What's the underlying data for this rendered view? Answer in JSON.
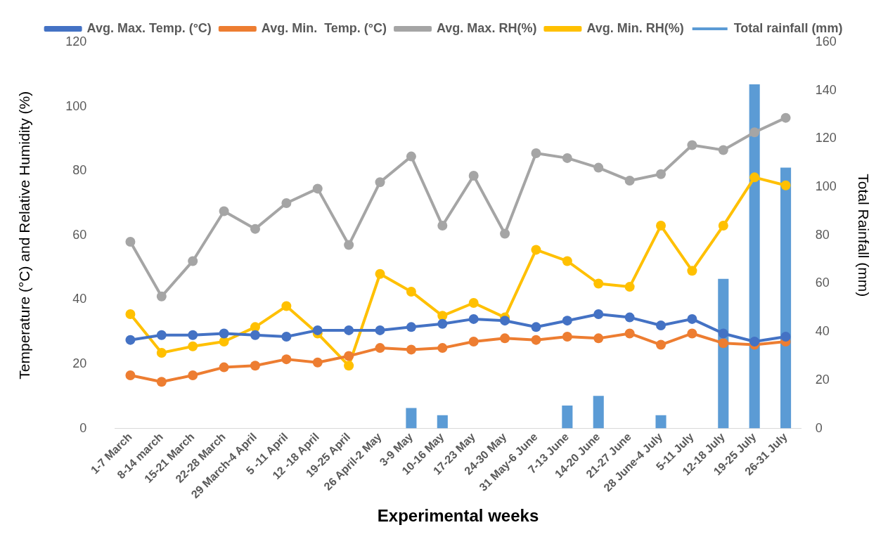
{
  "chart_data": {
    "type": "line",
    "xlabel": "Experimental weeks",
    "ylabel": "Temperature (°C) and Relative Humidity (%)",
    "y2label": "Total Rainfall (mm)",
    "categories": [
      "1-7 March",
      "8-14 march",
      "15-21 March",
      "22-28 March",
      "29 March-4 April",
      "5 -11 April",
      "12 -18 April",
      "19-25 April",
      "26 April-2 May",
      "3-9 May",
      "10-16 May",
      "17-23 May",
      "24-30 May",
      "31 May-6 June",
      "7-13 June",
      "14-20 June",
      "21-27 June",
      "28 June-4 July",
      "5-11 July",
      "12-18 July",
      "19-25 July",
      "26-31 July"
    ],
    "series": [
      {
        "name": "Total rainfall (mm)",
        "type": "bar",
        "axis": "y2",
        "color": "#5b9bd5",
        "values": [
          0,
          0,
          0,
          0,
          0,
          0,
          0,
          0,
          0,
          8.5,
          5.5,
          0,
          0,
          0,
          9.5,
          13.5,
          0,
          5.5,
          0,
          62,
          142.5,
          108
        ]
      },
      {
        "name": "Avg. Max. Temp. (°C)",
        "color": "#4472c4",
        "values": [
          27.5,
          29,
          29,
          29.5,
          29,
          28.5,
          30.5,
          30.5,
          30.5,
          31.5,
          32.5,
          34,
          33.5,
          31.5,
          33.5,
          35.5,
          34.5,
          32,
          34,
          29.5,
          27,
          28.5
        ]
      },
      {
        "name": "Avg. Min.  Temp. (°C)",
        "color": "#ed7d31",
        "values": [
          16.5,
          14.5,
          16.5,
          19,
          19.5,
          21.5,
          20.5,
          22.5,
          25,
          24.5,
          25,
          27,
          28,
          27.5,
          28.5,
          28,
          29.5,
          26,
          29.5,
          26.5,
          26,
          27
        ]
      },
      {
        "name": "Avg. Max. RH(%)",
        "color": "#a5a5a5",
        "values": [
          58,
          41,
          52,
          67.5,
          62,
          70,
          74.5,
          57,
          76.5,
          84.5,
          63,
          78.5,
          60.5,
          85.5,
          84,
          81,
          77,
          79,
          88,
          86.5,
          92,
          96.5
        ]
      },
      {
        "name": "Avg. Min. RH(%)",
        "color": "#ffc000",
        "values": [
          35.5,
          23.5,
          25.5,
          27,
          31.5,
          38,
          29.5,
          19.5,
          48,
          42.5,
          35,
          39,
          34.5,
          55.5,
          52,
          45,
          44,
          63,
          49,
          63,
          78,
          75.5
        ]
      }
    ],
    "ylim": [
      0,
      120
    ],
    "yticks": [
      0,
      20,
      40,
      60,
      80,
      100,
      120
    ],
    "y2lim": [
      0,
      160
    ],
    "y2ticks": [
      0,
      20,
      40,
      60,
      80,
      100,
      120,
      140,
      160
    ],
    "grid": false,
    "legend": "top",
    "marker": "circle",
    "line_style": "solid"
  }
}
